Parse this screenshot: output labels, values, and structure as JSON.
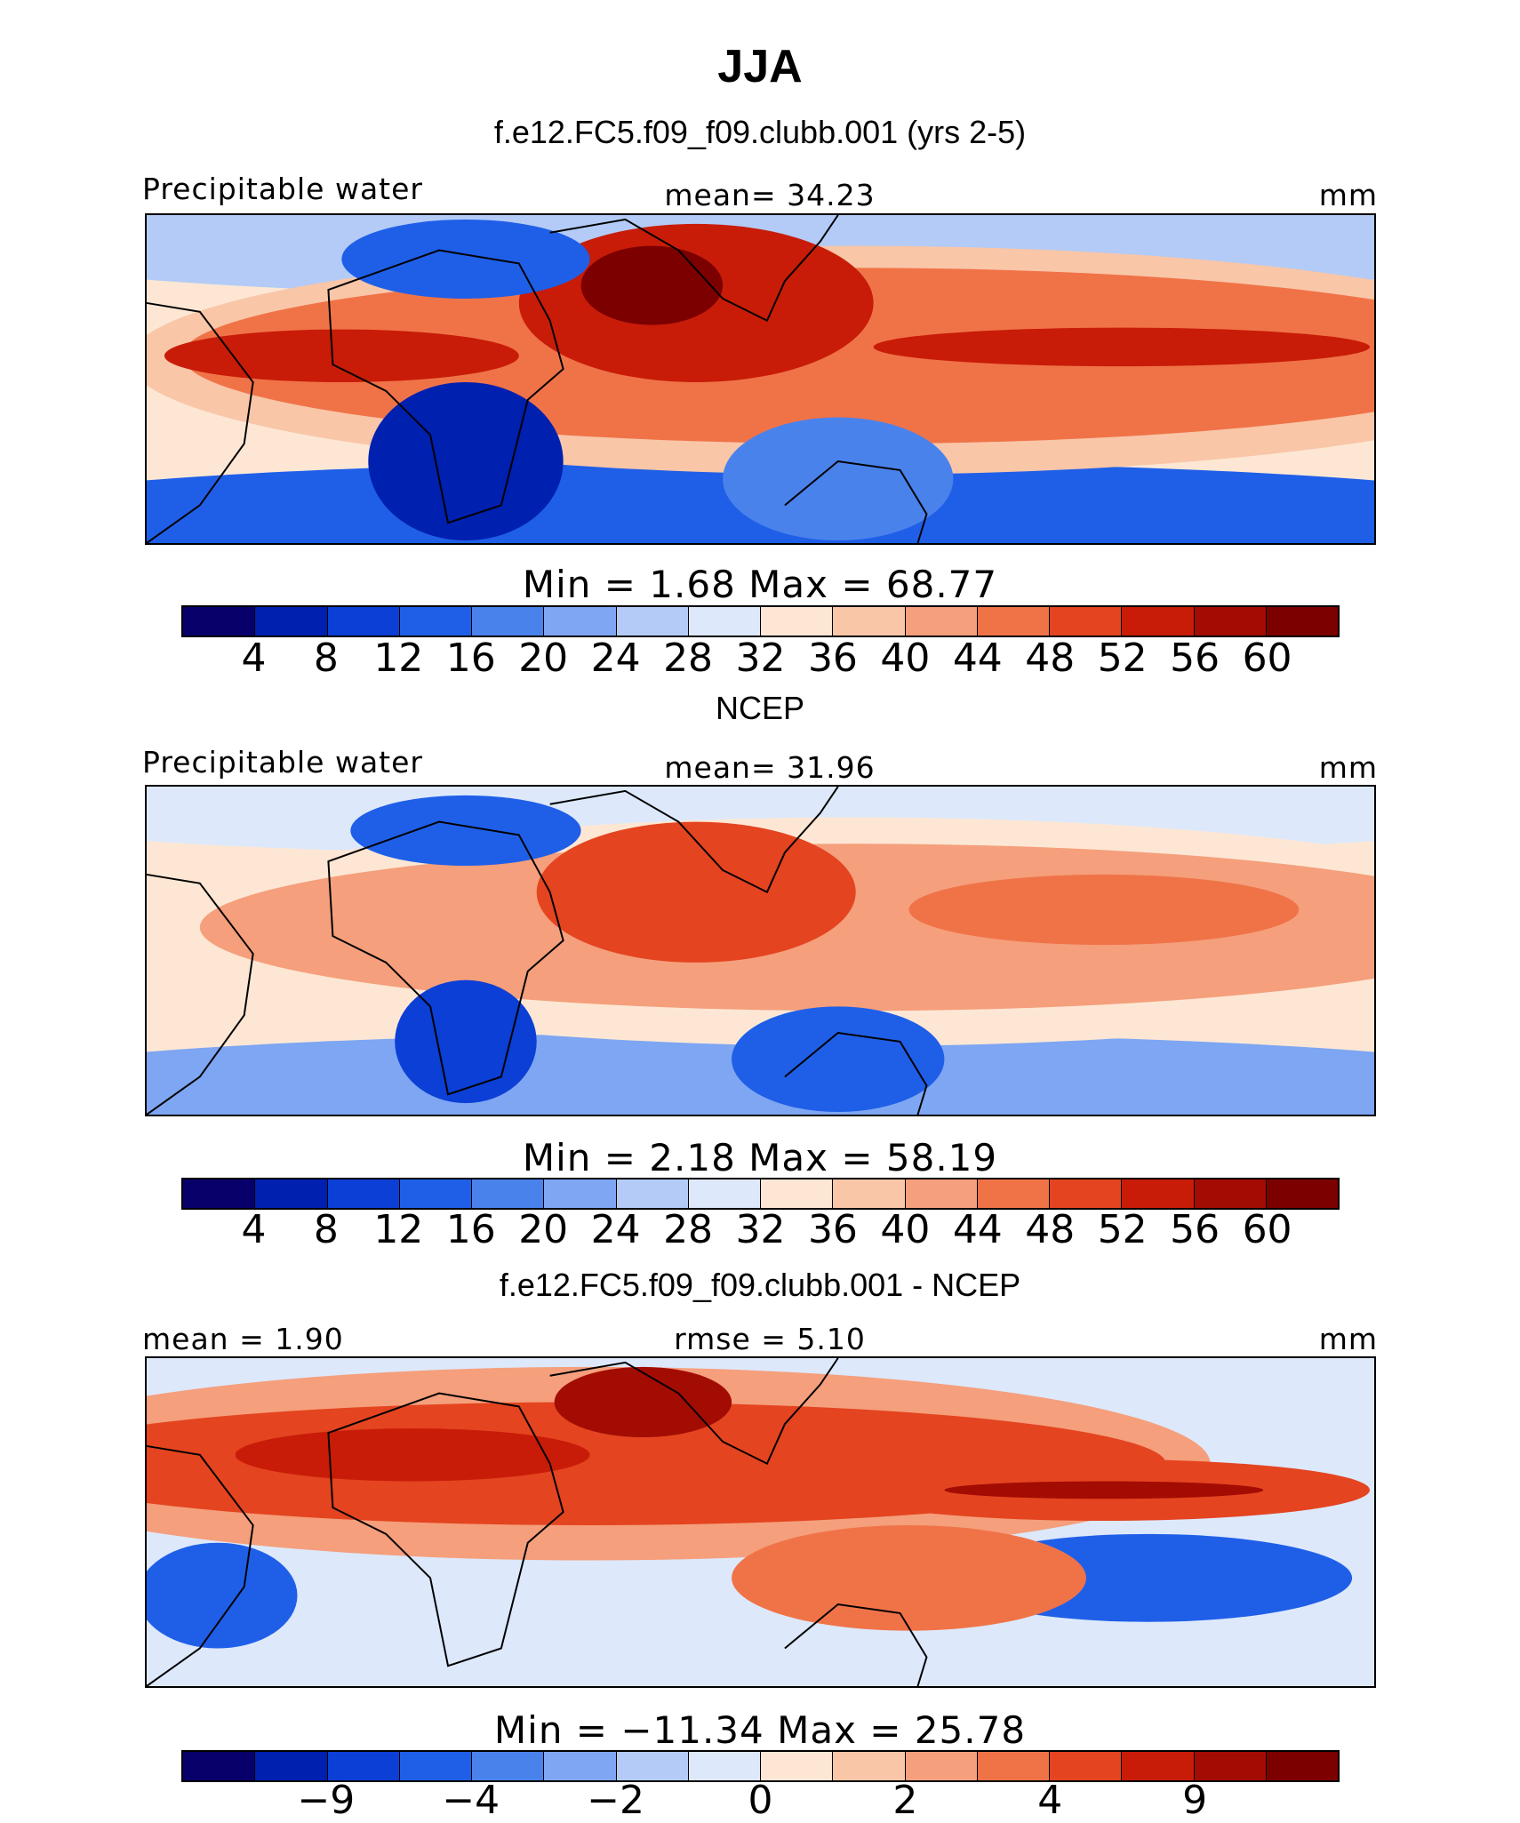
{
  "title": "JJA",
  "colors": {
    "palette": [
      "#08006a",
      "#0020b0",
      "#0b3fd6",
      "#1f5fe8",
      "#4a82ec",
      "#7ea6f2",
      "#b3cbf6",
      "#dde8fb",
      "#fde7d4",
      "#f9c6a8",
      "#f59f7c",
      "#f07348",
      "#e44420",
      "#c81c08",
      "#a30c03",
      "#7c0000"
    ],
    "diff_palette": [
      "#08006a",
      "#0020b0",
      "#0b3fd6",
      "#1f5fe8",
      "#4a82ec",
      "#7ea6f2",
      "#b3cbf6",
      "#dde8fb",
      "#fde7d4",
      "#f9c6a8",
      "#f59f7c",
      "#f07348",
      "#e44420",
      "#c81c08",
      "#a30c03",
      "#7c0000"
    ],
    "coastline": "#000000"
  },
  "panels": [
    {
      "subtitle": "f.e12.FC5.f09_f09.clubb.001 (yrs 2-5)",
      "left_label": "Precipitable water",
      "center_label": "mean=   34.23",
      "right_label": "mm",
      "minmax_label": "Min  =    1.68  Max  =   68.77",
      "colorbar_ticks": [
        "4",
        "8",
        "12",
        "16",
        "20",
        "24",
        "28",
        "32",
        "36",
        "40",
        "44",
        "48",
        "52",
        "56",
        "60"
      ],
      "colorbar_tick_positions": [
        1,
        2,
        3,
        4,
        5,
        6,
        7,
        8,
        9,
        10,
        11,
        12,
        13,
        14,
        15
      ]
    },
    {
      "subtitle": "NCEP",
      "left_label": "Precipitable water",
      "center_label": "mean=   31.96",
      "right_label": "mm",
      "minmax_label": "Min  =    2.18  Max  =   58.19",
      "colorbar_ticks": [
        "4",
        "8",
        "12",
        "16",
        "20",
        "24",
        "28",
        "32",
        "36",
        "40",
        "44",
        "48",
        "52",
        "56",
        "60"
      ],
      "colorbar_tick_positions": [
        1,
        2,
        3,
        4,
        5,
        6,
        7,
        8,
        9,
        10,
        11,
        12,
        13,
        14,
        15
      ]
    },
    {
      "subtitle": "f.e12.FC5.f09_f09.clubb.001 - NCEP",
      "left_label": "mean  =    1.90",
      "center_label": "rmse  =    5.10",
      "right_label": "mm",
      "minmax_label": "Min  = −11.34  Max  =   25.78",
      "colorbar_ticks": [
        "−9",
        "−4",
        "−2",
        "0",
        "2",
        "4",
        "9"
      ],
      "colorbar_tick_positions": [
        2,
        4,
        6,
        8,
        10,
        12,
        14
      ]
    }
  ],
  "chart_data": [
    {
      "type": "heatmap",
      "title": "f.e12.FC5.f09_f09.clubb.001 (yrs 2-5)",
      "variable": "Precipitable water",
      "units": "mm",
      "mean": 34.23,
      "min": 1.68,
      "max": 68.77,
      "contour_levels": [
        4,
        8,
        12,
        16,
        20,
        24,
        28,
        32,
        36,
        40,
        44,
        48,
        52,
        56,
        60
      ]
    },
    {
      "type": "heatmap",
      "title": "NCEP",
      "variable": "Precipitable water",
      "units": "mm",
      "mean": 31.96,
      "min": 2.18,
      "max": 58.19,
      "contour_levels": [
        4,
        8,
        12,
        16,
        20,
        24,
        28,
        32,
        36,
        40,
        44,
        48,
        52,
        56,
        60
      ]
    },
    {
      "type": "heatmap",
      "title": "f.e12.FC5.f09_f09.clubb.001 - NCEP",
      "units": "mm",
      "mean": 1.9,
      "rmse": 5.1,
      "min": -11.34,
      "max": 25.78,
      "contour_levels_labeled": [
        -9,
        -4,
        -2,
        0,
        2,
        4,
        9
      ]
    }
  ]
}
